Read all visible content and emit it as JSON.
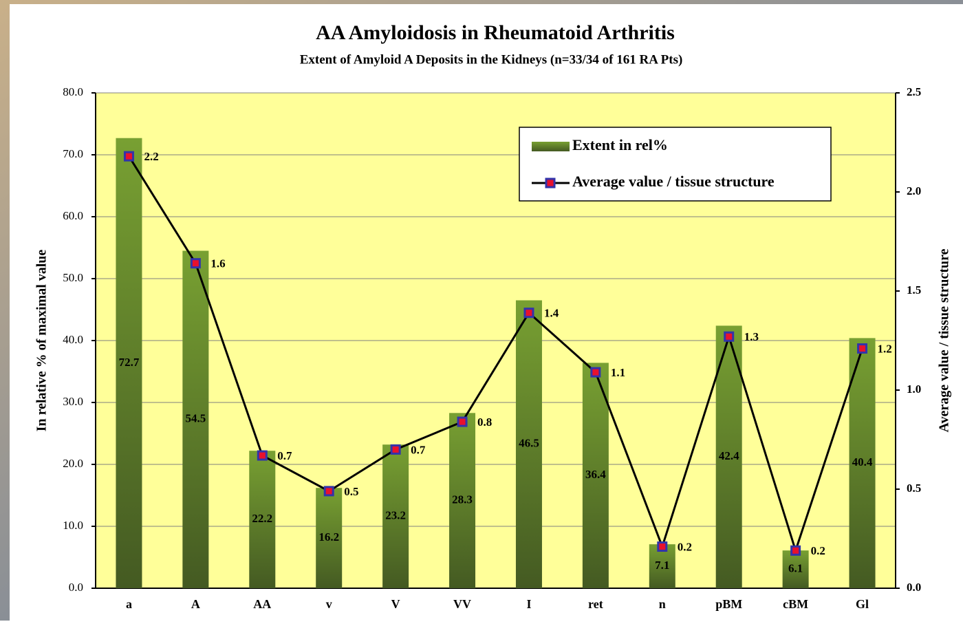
{
  "chart_data": {
    "type": "bar",
    "title": "AA Amyloidosis in Rheumatoid Arthritis",
    "subtitle": "Extent of Amyloid A Deposits in the Kidneys (n=33/34 of 161 RA Pts)",
    "y_label": "In relative % of maximal value",
    "y2_label": "Average value / tissue structure",
    "categories": [
      "a",
      "A",
      "AA",
      "v",
      "V",
      "VV",
      "I",
      "ret",
      "n",
      "pBM",
      "cBM",
      "Gl"
    ],
    "series": [
      {
        "name": "Extent in rel%",
        "type": "bar",
        "color": "#6b8a2e",
        "values": [
          72.7,
          54.5,
          22.2,
          16.2,
          23.2,
          28.3,
          46.5,
          36.4,
          7.1,
          42.4,
          6.1,
          40.4
        ]
      },
      {
        "name": "Average value / tissue structure",
        "type": "line",
        "axis": "y2",
        "color": "#000000",
        "marker_color": "#e8112d",
        "marker_edge": "#3333aa",
        "values": [
          2.18,
          1.64,
          0.67,
          0.49,
          0.7,
          0.84,
          1.39,
          1.09,
          0.21,
          1.27,
          0.19,
          1.21
        ],
        "value_labels": [
          "2.2",
          "1.6",
          "0.7",
          "0.5",
          "0.7",
          "0.8",
          "1.4",
          "1.1",
          "0.2",
          "1.3",
          "0.2",
          "1.2"
        ]
      }
    ],
    "ylim": [
      0,
      80
    ],
    "yticks": [
      {
        "value": 0,
        "label": "0.0"
      },
      {
        "value": 10,
        "label": "10.0"
      },
      {
        "value": 20,
        "label": "20.0"
      },
      {
        "value": 30,
        "label": "30.0"
      },
      {
        "value": 40,
        "label": "40.0"
      },
      {
        "value": 50,
        "label": "50.0"
      },
      {
        "value": 60,
        "label": "60.0"
      },
      {
        "value": 70,
        "label": "70.0"
      },
      {
        "value": 80,
        "label": "80.0"
      }
    ],
    "y2lim": [
      0,
      2.5
    ],
    "y2ticks": [
      {
        "value": 0,
        "label": "0.0"
      },
      0.5,
      {
        "value": 1,
        "label": "1.0"
      },
      1.5,
      {
        "value": 2,
        "label": "2.0"
      },
      2.5
    ],
    "grid": true,
    "legend": "upper right",
    "plot_background": "#ffff99"
  }
}
